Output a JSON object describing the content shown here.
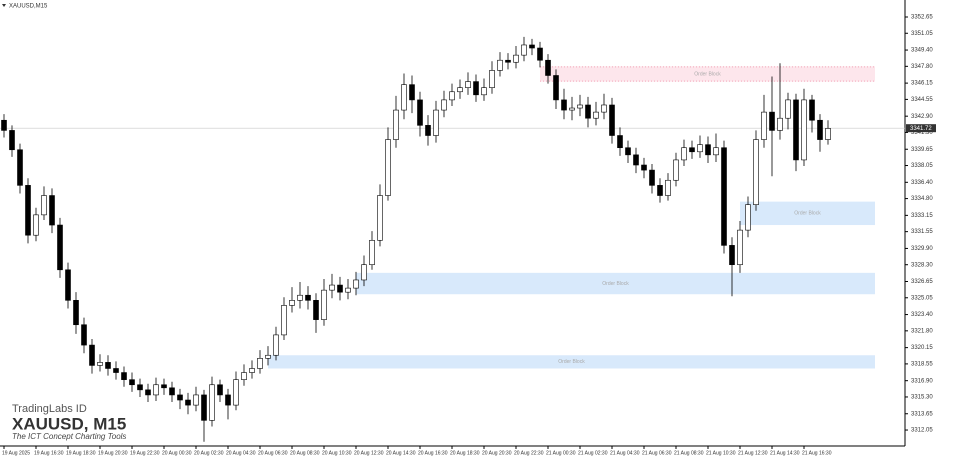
{
  "chart_data": {
    "type": "candlestick",
    "title": "XAUUSD,M15",
    "x_labels": [
      "19 Aug 2025",
      "19 Aug 16:30",
      "19 Aug 18:30",
      "19 Aug 20:30",
      "19 Aug 22:30",
      "20 Aug 00:30",
      "20 Aug 02:30",
      "20 Aug 04:30",
      "20 Aug 06:30",
      "20 Aug 08:30",
      "20 Aug 10:30",
      "20 Aug 12:30",
      "20 Aug 14:30",
      "20 Aug 16:30",
      "20 Aug 18:30",
      "20 Aug 20:30",
      "20 Aug 22:30",
      "21 Aug 00:30",
      "21 Aug 02:30",
      "21 Aug 04:30",
      "21 Aug 06:30",
      "21 Aug 08:30",
      "21 Aug 10:30",
      "21 Aug 12:30",
      "21 Aug 14:30",
      "21 Aug 16:30"
    ],
    "open": [
      3342.5,
      3341.5,
      3339.6,
      3336.1,
      3331.2,
      3333.2,
      3335.1,
      3332.2,
      3327.8,
      3324.8,
      3322.4,
      3320.4,
      3318.4,
      3318.7,
      3318.1,
      3317.7,
      3317.0,
      3316.5,
      3316.0,
      3315.5,
      3316.5,
      3316.2,
      3315.5,
      3315.0,
      3314.5,
      3315.5,
      3313.0,
      3316.5,
      3315.5,
      3314.5,
      3317.0,
      3317.7,
      3318.1,
      3319.1,
      3319.4,
      3321.4,
      3324.3,
      3324.8,
      3325.3,
      3324.8,
      3322.9,
      3325.8,
      3326.3,
      3325.6,
      3326.0,
      3326.8,
      3328.3,
      3330.7,
      3335.1,
      3340.6,
      3343.5,
      3346.0,
      3344.5,
      3342.0,
      3341.0,
      3343.5,
      3344.5,
      3345.3,
      3345.7,
      3346.3,
      3345.0,
      3345.7,
      3347.4,
      3348.4,
      3348.2,
      3348.9,
      3349.9,
      3349.6,
      3348.4,
      3346.9,
      3344.5,
      3343.5,
      3343.7,
      3344.0,
      3342.7,
      3343.3,
      3344.0,
      3341.0,
      3339.8,
      3339.1,
      3338.1,
      3337.6,
      3336.1,
      3335.1,
      3336.6,
      3338.6,
      3339.8,
      3339.4,
      3340.1,
      3339.1,
      3339.8,
      3330.2,
      3328.3,
      3331.7,
      3334.2,
      3340.6,
      3343.3,
      3341.5,
      3342.7,
      3344.5,
      3338.6,
      3344.5,
      3342.5,
      3340.6
    ],
    "high": [
      3343.1,
      3342.0,
      3340.2,
      3336.8,
      3333.9,
      3336.0,
      3335.8,
      3332.9,
      3328.5,
      3325.6,
      3323.1,
      3321.0,
      3319.5,
      3319.4,
      3318.8,
      3318.3,
      3317.7,
      3317.1,
      3316.6,
      3317.2,
      3317.1,
      3316.8,
      3316.1,
      3315.7,
      3316.3,
      3316.0,
      3317.3,
      3317.0,
      3316.1,
      3317.8,
      3318.5,
      3318.9,
      3319.9,
      3320.3,
      3322.2,
      3325.1,
      3326.1,
      3326.6,
      3326.2,
      3325.5,
      3326.9,
      3327.4,
      3327.1,
      3326.9,
      3327.6,
      3329.2,
      3331.6,
      3336.2,
      3341.8,
      3344.9,
      3347.1,
      3346.9,
      3345.3,
      3343.0,
      3344.4,
      3345.4,
      3346.1,
      3346.5,
      3347.2,
      3347.0,
      3346.6,
      3348.3,
      3349.2,
      3349.1,
      3349.8,
      3350.7,
      3350.5,
      3350.2,
      3349.0,
      3347.5,
      3345.6,
      3344.8,
      3345.0,
      3344.8,
      3344.3,
      3345.1,
      3344.7,
      3341.8,
      3340.5,
      3339.8,
      3338.8,
      3338.2,
      3336.8,
      3337.3,
      3339.3,
      3340.6,
      3340.5,
      3341.0,
      3340.9,
      3341.2,
      3340.5,
      3331.0,
      3332.6,
      3335.0,
      3341.5,
      3345.0,
      3346.8,
      3348.1,
      3345.2,
      3345.1,
      3345.6,
      3345.0,
      3343.1,
      3342.5
    ],
    "low": [
      3340.8,
      3338.9,
      3335.3,
      3330.4,
      3330.6,
      3332.7,
      3331.4,
      3327.0,
      3324.0,
      3321.5,
      3319.6,
      3317.6,
      3317.8,
      3317.4,
      3317.0,
      3316.3,
      3315.8,
      3315.3,
      3314.8,
      3314.9,
      3315.5,
      3314.8,
      3314.1,
      3313.6,
      3313.9,
      3310.9,
      3312.4,
      3314.8,
      3313.1,
      3314.0,
      3316.4,
      3317.1,
      3317.6,
      3318.4,
      3318.9,
      3320.9,
      3323.6,
      3324.0,
      3323.9,
      3321.6,
      3322.3,
      3325.0,
      3324.8,
      3324.9,
      3325.3,
      3326.2,
      3327.8,
      3330.1,
      3334.6,
      3339.8,
      3342.6,
      3343.2,
      3340.9,
      3340.0,
      3340.3,
      3342.8,
      3343.9,
      3344.6,
      3345.0,
      3344.3,
      3344.4,
      3345.1,
      3346.8,
      3347.5,
      3347.6,
      3348.3,
      3348.9,
      3347.7,
      3346.1,
      3343.6,
      3342.6,
      3342.5,
      3342.9,
      3341.8,
      3342.0,
      3342.6,
      3340.2,
      3339.0,
      3338.3,
      3337.3,
      3336.8,
      3335.3,
      3334.4,
      3334.6,
      3336.0,
      3338.0,
      3338.7,
      3338.8,
      3338.3,
      3338.4,
      3329.4,
      3325.2,
      3327.5,
      3331.0,
      3333.6,
      3339.8,
      3337.0,
      3340.6,
      3341.6,
      3337.5,
      3338.0,
      3341.3,
      3339.4,
      3340.1
    ],
    "close": [
      3341.5,
      3339.6,
      3336.1,
      3331.2,
      3333.2,
      3335.1,
      3332.2,
      3327.8,
      3324.8,
      3322.4,
      3320.4,
      3318.4,
      3318.7,
      3318.1,
      3317.7,
      3317.0,
      3316.5,
      3316.0,
      3315.5,
      3316.5,
      3316.2,
      3315.5,
      3315.0,
      3314.5,
      3315.5,
      3313.0,
      3316.5,
      3315.5,
      3314.5,
      3317.0,
      3317.7,
      3318.1,
      3319.1,
      3319.4,
      3321.4,
      3324.3,
      3324.8,
      3325.3,
      3324.8,
      3322.9,
      3325.8,
      3326.3,
      3325.6,
      3326.0,
      3326.8,
      3328.3,
      3330.7,
      3335.1,
      3340.6,
      3343.5,
      3346.0,
      3344.5,
      3342.0,
      3341.0,
      3343.5,
      3344.5,
      3345.3,
      3345.7,
      3346.3,
      3345.0,
      3345.7,
      3347.4,
      3348.4,
      3348.2,
      3348.9,
      3349.9,
      3349.6,
      3348.4,
      3346.9,
      3344.5,
      3343.5,
      3343.7,
      3344.0,
      3342.7,
      3343.3,
      3344.0,
      3341.0,
      3339.8,
      3339.1,
      3338.1,
      3337.6,
      3336.1,
      3335.1,
      3336.6,
      3338.6,
      3339.8,
      3339.4,
      3340.1,
      3339.1,
      3339.8,
      3330.2,
      3328.3,
      3331.7,
      3334.2,
      3340.6,
      3343.3,
      3341.5,
      3342.7,
      3344.5,
      3338.6,
      3344.5,
      3342.5,
      3340.6,
      3341.7
    ],
    "up_color": "#ffffff",
    "down_color": "#000000",
    "ylim": [
      3310.48,
      3354.32
    ],
    "yticks": [
      3312.05,
      3313.65,
      {
        "value": 3315.3,
        "label": "3315.30"
      },
      {
        "value": 3316.9,
        "label": "3316.90"
      },
      3318.55,
      3320.15,
      {
        "value": 3321.8,
        "label": "3321.80"
      },
      {
        "value": 3323.4,
        "label": "3323.40"
      },
      3325.05,
      3326.65,
      {
        "value": 3328.3,
        "label": "3328.30"
      },
      {
        "value": 3329.9,
        "label": "3329.90"
      },
      3331.55,
      3333.15,
      {
        "value": 3334.8,
        "label": "3334.80"
      },
      {
        "value": 3336.4,
        "label": "3336.40"
      },
      3338.05,
      3339.65,
      {
        "value": 3341.3,
        "label": "3341.30"
      },
      {
        "value": 3342.9,
        "label": "3342.90"
      },
      3344.55,
      3346.15,
      {
        "value": 3347.8,
        "label": "3347.80"
      },
      {
        "value": 3349.4,
        "label": "3349.40"
      },
      3351.05,
      3352.65
    ],
    "current_price": 3341.72,
    "order_blocks": [
      {
        "label": "Order Block",
        "top": 3347.8,
        "bottom": 3346.3,
        "start_index": 67,
        "color": "#fde6ec"
      },
      {
        "label": "Order Block",
        "top": 3334.5,
        "bottom": 3332.2,
        "start_index": 92,
        "color": "#d8e9fb"
      },
      {
        "label": "Order Block",
        "top": 3327.5,
        "bottom": 3325.4,
        "start_index": 44,
        "color": "#d8e9fb"
      },
      {
        "label": "Order Block",
        "top": 3319.4,
        "bottom": 3318.1,
        "start_index": 33,
        "color": "#d8e9fb"
      }
    ],
    "watermark": {
      "brand": "TradingLabs ID",
      "symbol": "XAUUSD, M15",
      "tagline": "The ICT Concept Charting Tools"
    }
  }
}
